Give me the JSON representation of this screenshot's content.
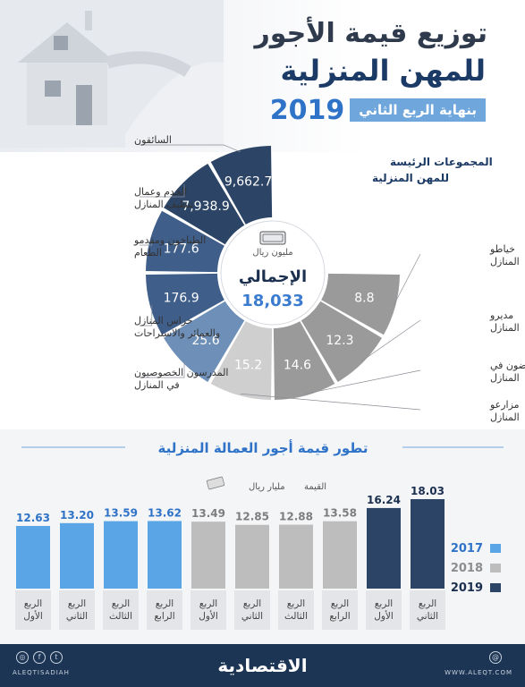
{
  "header": {
    "title_line1": "توزيع قيمة الأجور",
    "title_line2": "للمهن المنزلية",
    "subtitle": "بنهاية الربع الثاني",
    "year": "2019"
  },
  "donut": {
    "center_unit": "مليون ريال",
    "center_label": "الإجمالي",
    "center_value": "18,033",
    "group_label_line1": "المجموعات الرئيسة",
    "group_label_line2": "للمهن المنزلية",
    "colors": {
      "dark": "#2c4466",
      "mid": "#3f5e8a",
      "light": "#6e8fb8",
      "grey": "#9a9a9a",
      "lightgrey": "#cfcfcf"
    }
  },
  "chart_data": [
    {
      "type": "pie",
      "unit": "مليون ريال",
      "total": 18033,
      "categories": [
        "السائقون",
        "الخدم وعمال تنظيف المنازل",
        "الطباخون ومقدمو الطعام",
        "حراس المنازل والعمائر والاستراحات",
        "المدرسون الخصوصيون في المنازل",
        "مزارعو المنازل",
        "الممرضون في المنازل",
        "مديرو المنازل",
        "خياطو المنازل"
      ],
      "values": [
        9662.7,
        7938.9,
        177.6,
        176.9,
        25.6,
        15.2,
        14.6,
        12.3,
        8.8
      ],
      "value_labels": [
        "9,662.7",
        "7,938.9",
        "177.6",
        "176.9",
        "25.6",
        "15.2",
        "14.6",
        "12.3",
        "8.8"
      ]
    },
    {
      "type": "bar",
      "title": "تطور قيمة أجور العمالة المنزلية",
      "ylabel": "القيمة",
      "unit": "مليار ريال",
      "categories": [
        "الربع الأول",
        "الربع الثاني",
        "الربع الثالث",
        "الربع الرابع",
        "الربع الأول",
        "الربع الثاني",
        "الربع الثالث",
        "الربع الرابع",
        "الربع الأول",
        "الربع الثاني"
      ],
      "years": [
        "2017",
        "2017",
        "2017",
        "2017",
        "2018",
        "2018",
        "2018",
        "2018",
        "2019",
        "2019"
      ],
      "values": [
        12.63,
        13.2,
        13.59,
        13.62,
        13.49,
        12.85,
        12.88,
        13.58,
        16.24,
        18.03
      ],
      "value_labels": [
        "12.63",
        "13.20",
        "13.59",
        "13.62",
        "13.49",
        "12.85",
        "12.88",
        "13.58",
        "16.24",
        "18.03"
      ],
      "legend": [
        {
          "name": "2017",
          "color": "#5aa5e6"
        },
        {
          "name": "2018",
          "color": "#bdbdbd"
        },
        {
          "name": "2019",
          "color": "#2c4466"
        }
      ],
      "legend_position": "right"
    }
  ],
  "footer": {
    "logo": "الاقتصادية",
    "handle": "ALEQTISADIAH",
    "site": "WWW.ALEQT.COM",
    "social_icons": [
      "instagram-icon",
      "facebook-icon",
      "twitter-icon"
    ],
    "right_icon": "web-icon"
  }
}
